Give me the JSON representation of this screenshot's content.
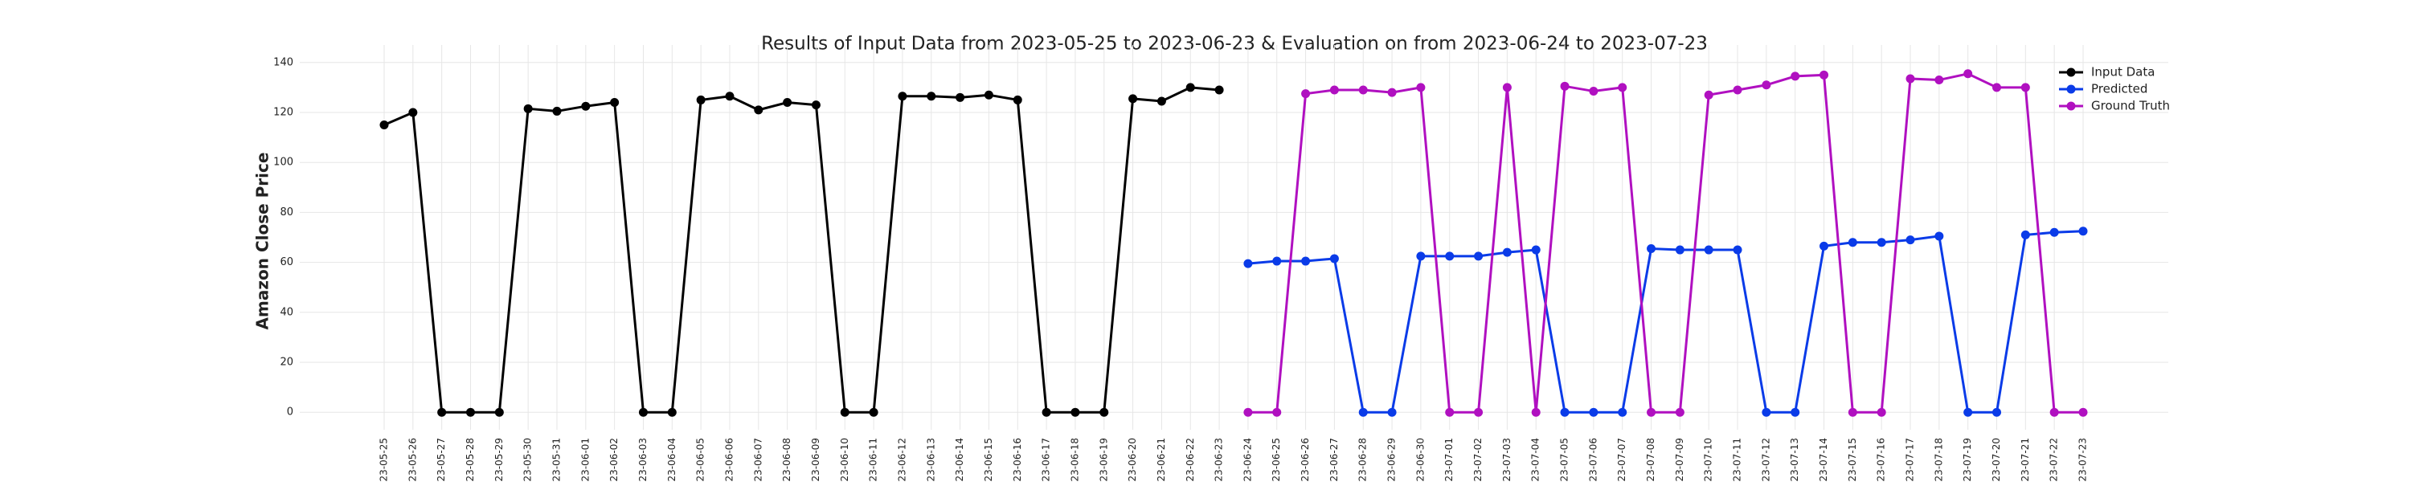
{
  "chart_data": {
    "type": "line",
    "title": "Results of Input Data from 2023-05-25 to 2023-06-23 & Evaluation on from 2023-06-24 to 2023-07-23",
    "y_label": "Amazon Close Price",
    "categories": [
      "2023-05-25",
      "2023-05-26",
      "2023-05-27",
      "2023-05-28",
      "2023-05-29",
      "2023-05-30",
      "2023-05-31",
      "2023-06-01",
      "2023-06-02",
      "2023-06-03",
      "2023-06-04",
      "2023-06-05",
      "2023-06-06",
      "2023-06-07",
      "2023-06-08",
      "2023-06-09",
      "2023-06-10",
      "2023-06-11",
      "2023-06-12",
      "2023-06-13",
      "2023-06-14",
      "2023-06-15",
      "2023-06-16",
      "2023-06-17",
      "2023-06-18",
      "2023-06-19",
      "2023-06-20",
      "2023-06-21",
      "2023-06-22",
      "2023-06-23",
      "2023-06-24",
      "2023-06-25",
      "2023-06-26",
      "2023-06-27",
      "2023-06-28",
      "2023-06-29",
      "2023-06-30",
      "2023-07-01",
      "2023-07-02",
      "2023-07-03",
      "2023-07-04",
      "2023-07-05",
      "2023-07-06",
      "2023-07-07",
      "2023-07-08",
      "2023-07-09",
      "2023-07-10",
      "2023-07-11",
      "2023-07-12",
      "2023-07-13",
      "2023-07-14",
      "2023-07-15",
      "2023-07-16",
      "2023-07-17",
      "2023-07-18",
      "2023-07-19",
      "2023-07-20",
      "2023-07-21",
      "2023-07-22",
      "2023-07-23"
    ],
    "series": [
      {
        "name": "Input Data",
        "color": "#000000",
        "values": [
          115,
          120,
          0,
          0,
          0,
          121.5,
          120.5,
          122.5,
          124,
          0,
          0,
          125,
          126.5,
          121,
          124,
          123,
          0,
          0,
          126.5,
          126.5,
          126,
          127,
          125,
          0,
          0,
          0,
          125.5,
          124.5,
          130,
          129,
          null,
          null,
          null,
          null,
          null,
          null,
          null,
          null,
          null,
          null,
          null,
          null,
          null,
          null,
          null,
          null,
          null,
          null,
          null,
          null,
          null,
          null,
          null,
          null,
          null,
          null,
          null,
          null,
          null,
          null
        ]
      },
      {
        "name": "Predicted",
        "color": "#0a3be8",
        "values": [
          null,
          null,
          null,
          null,
          null,
          null,
          null,
          null,
          null,
          null,
          null,
          null,
          null,
          null,
          null,
          null,
          null,
          null,
          null,
          null,
          null,
          null,
          null,
          null,
          null,
          null,
          null,
          null,
          null,
          null,
          59.5,
          60.5,
          60.5,
          61.5,
          0,
          0,
          62.5,
          62.5,
          62.5,
          64,
          65,
          0,
          0,
          0,
          65.5,
          65,
          65,
          65,
          0,
          0,
          66.5,
          68,
          68,
          69,
          70.5,
          0,
          0,
          71,
          72,
          72.5
        ]
      },
      {
        "name": "Ground Truth",
        "color": "#b010c0",
        "values": [
          null,
          null,
          null,
          null,
          null,
          null,
          null,
          null,
          null,
          null,
          null,
          null,
          null,
          null,
          null,
          null,
          null,
          null,
          null,
          null,
          null,
          null,
          null,
          null,
          null,
          null,
          null,
          null,
          null,
          null,
          0,
          0,
          127.5,
          129,
          129,
          128,
          130,
          0,
          0,
          130,
          0,
          130.5,
          128.5,
          130,
          0,
          0,
          127,
          129,
          131,
          134.5,
          135,
          0,
          0,
          133.5,
          133,
          135.5,
          130,
          130,
          0,
          0
        ]
      }
    ],
    "ylim": [
      -7,
      147
    ],
    "yticks": [
      0,
      20,
      40,
      60,
      80,
      100,
      120,
      140
    ],
    "grid": true,
    "legend": "upper right"
  }
}
